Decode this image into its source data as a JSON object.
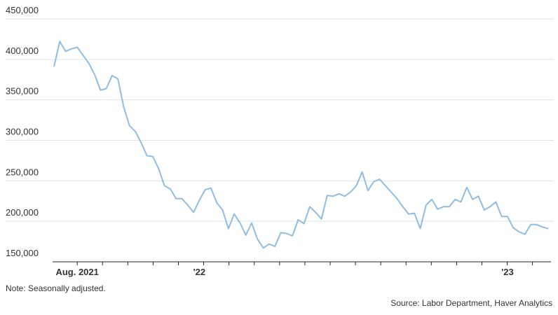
{
  "chart_data": {
    "type": "line",
    "note": "Note: Seasonally adjusted.",
    "source": "Source: Labor Department, Haver Analytics",
    "categories": [
      null,
      null,
      null,
      null,
      "Aug. 2021",
      null,
      null,
      null,
      null,
      null,
      null,
      null,
      null,
      null,
      null,
      null,
      null,
      null,
      null,
      null,
      null,
      null,
      null,
      null,
      null,
      "'22",
      null,
      null,
      null,
      null,
      null,
      null,
      null,
      null,
      null,
      null,
      null,
      null,
      null,
      null,
      null,
      null,
      null,
      null,
      null,
      null,
      null,
      null,
      null,
      null,
      null,
      null,
      null,
      null,
      null,
      null,
      null,
      null,
      null,
      null,
      null,
      null,
      null,
      null,
      null,
      null,
      null,
      null,
      null,
      null,
      null,
      null,
      null,
      null,
      null,
      null,
      null,
      null,
      "'23",
      null,
      null,
      null,
      null,
      null,
      null,
      null
    ],
    "series": [
      {
        "color": "#8fbde3",
        "values": [
          391000,
          422000,
          410000,
          413000,
          415000,
          405000,
          395000,
          381000,
          362000,
          364000,
          380000,
          376000,
          341000,
          318000,
          311000,
          297000,
          281000,
          280000,
          265000,
          244000,
          240000,
          228000,
          228000,
          220000,
          211000,
          226000,
          239000,
          241000,
          223000,
          214000,
          191000,
          209000,
          198000,
          183000,
          198000,
          178000,
          167000,
          172000,
          169000,
          186000,
          185000,
          182000,
          202000,
          197000,
          218000,
          211000,
          203000,
          232000,
          231000,
          234000,
          231000,
          236000,
          244000,
          261000,
          238000,
          249000,
          252000,
          244000,
          236000,
          228000,
          218000,
          209000,
          210000,
          191000,
          220000,
          227000,
          215000,
          218000,
          218000,
          227000,
          224000,
          242000,
          227000,
          231000,
          214000,
          218000,
          224000,
          206000,
          206000,
          192000,
          187000,
          184000,
          196000,
          196000,
          193000,
          191000
        ]
      }
    ],
    "ylim": [
      150000,
      450000
    ],
    "yticks": [
      {
        "value": 150000,
        "label": "150,000"
      },
      {
        "value": 200000,
        "label": "200,000"
      },
      {
        "value": 250000,
        "label": "250,000"
      },
      {
        "value": 300000,
        "label": "300,000"
      },
      {
        "value": 350000,
        "label": "350,000"
      },
      {
        "value": 400000,
        "label": "400,000"
      },
      {
        "value": 450000,
        "label": "450,000"
      }
    ],
    "grid": true
  }
}
